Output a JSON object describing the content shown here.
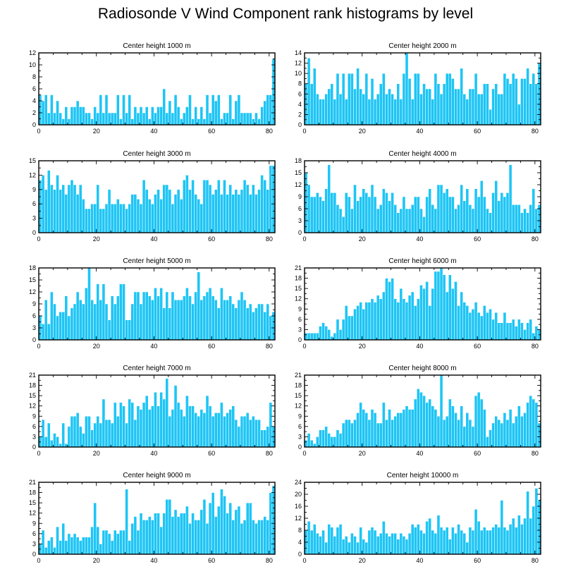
{
  "title": "Radiosonde V Wind Component rank histograms by level",
  "chart_data": [
    {
      "type": "bar",
      "title": "Center height 1000 m",
      "xlim": [
        0,
        82
      ],
      "ylim": [
        0,
        12
      ],
      "xticks": [
        0,
        20,
        40,
        60,
        80
      ],
      "yticks": [
        0,
        2,
        4,
        6,
        8,
        10,
        12
      ],
      "values": [
        5,
        4,
        5,
        2,
        5,
        2,
        4,
        2,
        1,
        3,
        1,
        3,
        3,
        4,
        3,
        3,
        2,
        2,
        1,
        3,
        2,
        5,
        2,
        5,
        2,
        2,
        2,
        5,
        1,
        5,
        2,
        5,
        1,
        3,
        2,
        3,
        2,
        3,
        1,
        3,
        2,
        3,
        3,
        6,
        2,
        4,
        2,
        5,
        3,
        1,
        2,
        3,
        5,
        1,
        3,
        1,
        3,
        1,
        5,
        2,
        5,
        4,
        5,
        1,
        2,
        2,
        5,
        1,
        4,
        5,
        2,
        2,
        2,
        2,
        1,
        2,
        1,
        3,
        4,
        5,
        5,
        11
      ]
    },
    {
      "type": "bar",
      "title": "Center height 2000 m",
      "xlim": [
        0,
        82
      ],
      "ylim": [
        0,
        14
      ],
      "xticks": [
        0,
        20,
        40,
        60,
        80
      ],
      "yticks": [
        0,
        2,
        4,
        6,
        8,
        10,
        12,
        14
      ],
      "values": [
        8,
        13,
        8,
        11,
        6,
        5,
        5,
        6,
        7,
        8,
        5,
        10,
        6,
        10,
        5,
        10,
        10,
        7,
        11,
        7,
        6,
        10,
        5,
        9,
        5,
        6,
        8,
        10,
        6,
        7,
        6,
        5,
        8,
        5,
        10,
        14,
        9,
        5,
        10,
        10,
        6,
        8,
        7,
        7,
        5,
        10,
        8,
        6,
        8,
        10,
        10,
        9,
        7,
        7,
        11,
        6,
        5,
        7,
        7,
        10,
        6,
        6,
        8,
        8,
        3,
        7,
        8,
        6,
        6,
        10,
        9,
        8,
        10,
        9,
        4,
        9,
        9,
        11,
        8,
        10,
        8,
        12
      ]
    },
    {
      "type": "bar",
      "title": "Center height 3000 m",
      "xlim": [
        0,
        82
      ],
      "ylim": [
        0,
        15
      ],
      "xticks": [
        0,
        20,
        40,
        60,
        80
      ],
      "yticks": [
        0,
        3,
        6,
        9,
        12,
        15
      ],
      "values": [
        11,
        12,
        9,
        13,
        10,
        9,
        12,
        9,
        10,
        8,
        10,
        11,
        10,
        8,
        10,
        7,
        5,
        5,
        6,
        6,
        10,
        5,
        5,
        6,
        9,
        6,
        6,
        7,
        6,
        6,
        5,
        6,
        8,
        8,
        7,
        6,
        11,
        9,
        7,
        6,
        8,
        9,
        7,
        10,
        10,
        9,
        6,
        8,
        9,
        7,
        11,
        12,
        9,
        11,
        8,
        7,
        6,
        11,
        11,
        10,
        8,
        9,
        11,
        8,
        11,
        8,
        10,
        8,
        9,
        8,
        9,
        11,
        10,
        8,
        10,
        8,
        9,
        12,
        11,
        9,
        14,
        14
      ]
    },
    {
      "type": "bar",
      "title": "Center height 4000 m",
      "xlim": [
        0,
        82
      ],
      "ylim": [
        0,
        18
      ],
      "xticks": [
        0,
        20,
        40,
        60,
        80
      ],
      "yticks": [
        0,
        3,
        6,
        9,
        12,
        15,
        18
      ],
      "values": [
        15,
        12,
        9,
        9,
        10,
        9,
        8,
        11,
        17,
        10,
        10,
        7,
        6,
        4,
        10,
        9,
        6,
        12,
        8,
        9,
        11,
        10,
        9,
        12,
        9,
        6,
        7,
        11,
        10,
        8,
        10,
        7,
        5,
        6,
        9,
        6,
        6,
        7,
        9,
        9,
        6,
        4,
        9,
        11,
        7,
        6,
        12,
        12,
        10,
        11,
        9,
        9,
        6,
        7,
        12,
        8,
        11,
        7,
        6,
        11,
        9,
        13,
        9,
        6,
        5,
        10,
        13,
        8,
        10,
        9,
        10,
        17,
        7,
        7,
        7,
        5,
        6,
        5,
        7,
        11,
        6,
        7
      ]
    },
    {
      "type": "bar",
      "title": "Center height 5000 m",
      "xlim": [
        0,
        82
      ],
      "ylim": [
        0,
        18
      ],
      "xticks": [
        0,
        20,
        40,
        60,
        80
      ],
      "yticks": [
        0,
        3,
        6,
        9,
        12,
        15,
        18
      ],
      "values": [
        6,
        4,
        10,
        4,
        12,
        9,
        6,
        7,
        7,
        11,
        6,
        8,
        9,
        12,
        10,
        9,
        13,
        18,
        10,
        9,
        14,
        10,
        14,
        9,
        5,
        11,
        9,
        11,
        14,
        14,
        5,
        5,
        9,
        12,
        12,
        9,
        12,
        12,
        11,
        10,
        13,
        11,
        13,
        8,
        12,
        8,
        12,
        10,
        10,
        10,
        11,
        13,
        11,
        9,
        12,
        17,
        10,
        11,
        12,
        13,
        11,
        10,
        8,
        13,
        10,
        10,
        11,
        9,
        8,
        10,
        12,
        10,
        8,
        9,
        7,
        8,
        9,
        9,
        7,
        9,
        6,
        7
      ]
    },
    {
      "type": "bar",
      "title": "Center height 6000 m",
      "xlim": [
        0,
        82
      ],
      "ylim": [
        0,
        21
      ],
      "xticks": [
        0,
        20,
        40,
        60,
        80
      ],
      "yticks": [
        0,
        3,
        6,
        9,
        12,
        15,
        18,
        21
      ],
      "values": [
        2,
        2,
        2,
        2,
        2,
        4,
        5,
        4,
        3,
        1,
        2,
        6,
        3,
        6,
        10,
        7,
        7,
        9,
        10,
        11,
        9,
        11,
        11,
        12,
        11,
        13,
        12,
        14,
        18,
        17,
        18,
        12,
        11,
        15,
        12,
        11,
        13,
        14,
        10,
        12,
        16,
        15,
        17,
        10,
        15,
        20,
        20,
        21,
        19,
        14,
        19,
        15,
        17,
        10,
        14,
        11,
        10,
        8,
        9,
        11,
        8,
        7,
        10,
        8,
        9,
        6,
        8,
        5,
        5,
        8,
        5,
        5,
        6,
        4,
        6,
        5,
        3,
        5,
        6,
        2,
        4,
        3
      ]
    },
    {
      "type": "bar",
      "title": "Center height 7000 m",
      "xlim": [
        0,
        82
      ],
      "ylim": [
        0,
        21
      ],
      "xticks": [
        0,
        20,
        40,
        60,
        80
      ],
      "yticks": [
        0,
        3,
        6,
        9,
        12,
        15,
        18,
        21
      ],
      "values": [
        3,
        8,
        3,
        7,
        2,
        4,
        3,
        1,
        7,
        1,
        6,
        9,
        9,
        10,
        6,
        4,
        9,
        9,
        5,
        7,
        9,
        7,
        14,
        8,
        8,
        7,
        13,
        9,
        13,
        12,
        7,
        14,
        13,
        8,
        12,
        11,
        13,
        15,
        11,
        12,
        16,
        12,
        16,
        14,
        20,
        9,
        11,
        18,
        13,
        11,
        9,
        15,
        12,
        12,
        10,
        9,
        11,
        10,
        15,
        12,
        9,
        10,
        10,
        13,
        9,
        10,
        11,
        12,
        8,
        6,
        9,
        9,
        10,
        8,
        9,
        8,
        8,
        5,
        5,
        6,
        13,
        6
      ]
    },
    {
      "type": "bar",
      "title": "Center height 8000 m",
      "xlim": [
        0,
        82
      ],
      "ylim": [
        0,
        21
      ],
      "xticks": [
        0,
        20,
        40,
        60,
        80
      ],
      "yticks": [
        0,
        3,
        6,
        9,
        12,
        15,
        18,
        21
      ],
      "values": [
        2,
        4,
        2,
        1,
        3,
        5,
        5,
        6,
        4,
        3,
        3,
        5,
        4,
        7,
        8,
        8,
        7,
        8,
        10,
        13,
        11,
        10,
        8,
        11,
        10,
        7,
        7,
        13,
        8,
        11,
        8,
        9,
        10,
        10,
        11,
        12,
        11,
        11,
        14,
        17,
        16,
        15,
        13,
        14,
        12,
        11,
        9,
        21,
        8,
        9,
        14,
        12,
        10,
        8,
        12,
        6,
        10,
        8,
        6,
        15,
        16,
        14,
        11,
        3,
        5,
        7,
        9,
        8,
        7,
        10,
        8,
        11,
        7,
        9,
        12,
        9,
        10,
        13,
        15,
        14,
        13,
        7
      ]
    },
    {
      "type": "bar",
      "title": "Center height 9000 m",
      "xlim": [
        0,
        82
      ],
      "ylim": [
        0,
        21
      ],
      "xticks": [
        0,
        20,
        40,
        60,
        80
      ],
      "yticks": [
        0,
        3,
        6,
        9,
        12,
        15,
        18,
        21
      ],
      "values": [
        3,
        7,
        2,
        4,
        5,
        2,
        8,
        4,
        9,
        4,
        6,
        5,
        6,
        5,
        4,
        5,
        5,
        5,
        8,
        15,
        8,
        3,
        7,
        7,
        6,
        4,
        7,
        6,
        7,
        7,
        19,
        4,
        9,
        11,
        7,
        12,
        10,
        10,
        11,
        10,
        12,
        12,
        8,
        12,
        16,
        16,
        11,
        13,
        11,
        12,
        12,
        14,
        9,
        12,
        10,
        10,
        13,
        16,
        9,
        15,
        18,
        11,
        14,
        19,
        17,
        12,
        15,
        10,
        13,
        14,
        9,
        10,
        15,
        15,
        10,
        9,
        10,
        10,
        11,
        10,
        18,
        20
      ]
    },
    {
      "type": "bar",
      "title": "Center height 10000 m",
      "xlim": [
        0,
        82
      ],
      "ylim": [
        0,
        24
      ],
      "xticks": [
        0,
        20,
        40,
        60,
        80
      ],
      "yticks": [
        0,
        4,
        8,
        12,
        16,
        20,
        24
      ],
      "values": [
        8,
        11,
        8,
        10,
        7,
        6,
        8,
        4,
        10,
        9,
        6,
        9,
        10,
        5,
        6,
        4,
        7,
        6,
        4,
        9,
        5,
        4,
        8,
        9,
        8,
        6,
        7,
        11,
        7,
        6,
        7,
        7,
        5,
        7,
        6,
        5,
        7,
        10,
        9,
        10,
        8,
        7,
        11,
        12,
        8,
        7,
        13,
        9,
        8,
        9,
        5,
        9,
        7,
        10,
        8,
        7,
        4,
        9,
        8,
        15,
        11,
        8,
        9,
        8,
        8,
        9,
        10,
        9,
        18,
        9,
        8,
        10,
        12,
        9,
        13,
        10,
        12,
        21,
        12,
        16,
        22,
        18
      ]
    }
  ]
}
